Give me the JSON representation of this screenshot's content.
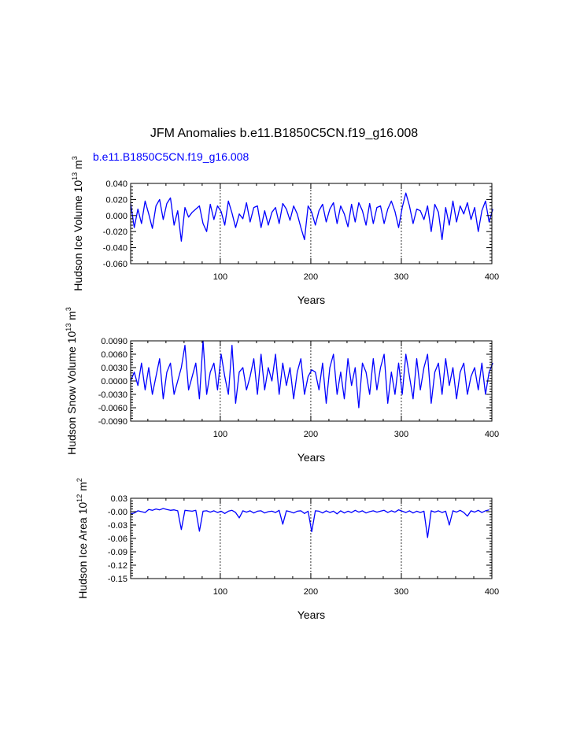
{
  "figure": {
    "title": "JFM Anomalies b.e11.B1850C5CN.f19_g16.008",
    "subtitle": "b.e11.B1850C5CN.f19_g16.008",
    "subtitle_color": "#0000ff",
    "line_color": "#0000ff",
    "ref_line_x": [
      100,
      200,
      300
    ]
  },
  "chart_data": [
    {
      "type": "line",
      "title": "",
      "xlabel": "Years",
      "ylabel_base": "Hudson Ice Volume 10",
      "ylabel_exp": "13",
      "ylabel_unit": " m",
      "ylabel_unit_exp": "3",
      "xlim": [
        1,
        400
      ],
      "ylim": [
        -0.06,
        0.04
      ],
      "xticks": [
        100,
        200,
        300,
        400
      ],
      "xtick_labels": [
        "100",
        "200",
        "300",
        "400"
      ],
      "yticks": [
        -0.06,
        -0.04,
        -0.02,
        0.0,
        0.02,
        0.04
      ],
      "ytick_labels": [
        "-0.060",
        "-0.040",
        "-0.020",
        "0.000",
        "0.020",
        "0.040"
      ],
      "series": [
        {
          "name": "Hudson Ice Volume",
          "x_start": 1,
          "x_step": 4,
          "values": [
            0.015,
            -0.015,
            0.008,
            -0.01,
            0.018,
            0.002,
            -0.016,
            0.012,
            0.02,
            -0.005,
            0.015,
            0.022,
            -0.012,
            0.006,
            -0.032,
            0.01,
            -0.002,
            0.004,
            0.008,
            0.012,
            -0.01,
            -0.02,
            0.014,
            -0.005,
            0.012,
            0.005,
            -0.012,
            0.018,
            0.003,
            -0.015,
            0.002,
            -0.004,
            0.016,
            -0.008,
            0.01,
            0.012,
            -0.015,
            0.006,
            -0.012,
            0.004,
            0.01,
            -0.01,
            0.015,
            0.008,
            -0.006,
            0.012,
            0.002,
            -0.015,
            -0.03,
            0.012,
            0.004,
            -0.012,
            0.006,
            0.014,
            -0.008,
            0.008,
            0.016,
            -0.01,
            0.012,
            0.002,
            -0.014,
            0.014,
            -0.008,
            0.016,
            0.006,
            -0.012,
            0.015,
            -0.01,
            0.01,
            0.012,
            -0.01,
            0.008,
            0.018,
            0.005,
            -0.015,
            0.01,
            0.028,
            0.012,
            -0.01,
            0.008,
            0.006,
            -0.005,
            0.012,
            -0.02,
            0.014,
            0.004,
            -0.03,
            0.01,
            -0.012,
            0.018,
            -0.008,
            0.012,
            0.002,
            0.016,
            -0.005,
            0.01,
            -0.02,
            0.006,
            0.018,
            -0.008,
            0.008
          ]
        }
      ]
    },
    {
      "type": "line",
      "title": "",
      "xlabel": "Years",
      "ylabel_base": "Hudson Snow Volume 10",
      "ylabel_exp": "13",
      "ylabel_unit": " m",
      "ylabel_unit_exp": "3",
      "xlim": [
        1,
        400
      ],
      "ylim": [
        -0.009,
        0.009
      ],
      "xticks": [
        100,
        200,
        300,
        400
      ],
      "xtick_labels": [
        "100",
        "200",
        "300",
        "400"
      ],
      "yticks": [
        -0.009,
        -0.006,
        -0.003,
        0.0,
        0.003,
        0.006,
        0.009
      ],
      "ytick_labels": [
        "-0.0090",
        "-0.0060",
        "-0.0030",
        "0.0000",
        "0.0030",
        "0.0060",
        "0.0090"
      ],
      "series": [
        {
          "name": "Hudson Snow Volume",
          "x_start": 1,
          "x_step": 4,
          "values": [
            0.0,
            0.002,
            -0.001,
            0.004,
            -0.002,
            0.003,
            -0.003,
            0.001,
            0.005,
            -0.004,
            0.002,
            0.004,
            -0.003,
            0.0,
            0.003,
            0.008,
            -0.002,
            0.001,
            0.004,
            -0.004,
            0.009,
            -0.003,
            0.002,
            0.004,
            -0.002,
            0.006,
            0.001,
            -0.003,
            0.008,
            -0.005,
            0.002,
            0.003,
            -0.002,
            0.001,
            0.005,
            -0.003,
            0.006,
            -0.002,
            0.003,
            0.0,
            0.006,
            -0.003,
            0.004,
            -0.001,
            0.003,
            -0.004,
            0.002,
            0.005,
            -0.003,
            0.001,
            0.0025,
            0.002,
            -0.002,
            0.004,
            -0.005,
            0.003,
            0.006,
            -0.003,
            0.002,
            -0.004,
            0.005,
            -0.001,
            0.003,
            -0.006,
            0.004,
            0.002,
            -0.003,
            0.005,
            -0.002,
            0.003,
            0.006,
            -0.005,
            0.002,
            -0.003,
            0.004,
            -0.003,
            0.006,
            0.001,
            -0.004,
            0.005,
            -0.002,
            0.003,
            0.006,
            -0.005,
            0.002,
            0.004,
            -0.003,
            0.005,
            -0.001,
            0.003,
            -0.004,
            0.002,
            0.004,
            -0.003,
            0.001,
            0.003,
            -0.002,
            0.004,
            -0.003,
            0.002,
            0.004
          ]
        }
      ]
    },
    {
      "type": "line",
      "title": "",
      "xlabel": "Years",
      "ylabel_base": "Hudson Ice Area 10",
      "ylabel_exp": "12",
      "ylabel_unit": " m",
      "ylabel_unit_exp": "2",
      "xlim": [
        1,
        400
      ],
      "ylim": [
        -0.15,
        0.03
      ],
      "xticks": [
        100,
        200,
        300,
        400
      ],
      "xtick_labels": [
        "100",
        "200",
        "300",
        "400"
      ],
      "yticks": [
        -0.15,
        -0.12,
        -0.09,
        -0.06,
        -0.03,
        0.0,
        0.03
      ],
      "ytick_labels": [
        "-0.15",
        "-0.12",
        "-0.09",
        "-0.06",
        "-0.03",
        "-0.00",
        "0.03"
      ],
      "series": [
        {
          "name": "Hudson Ice Area",
          "x_start": 1,
          "x_step": 4,
          "values": [
            -0.005,
            -0.003,
            0.002,
            0.0,
            -0.002,
            0.005,
            0.003,
            0.006,
            0.004,
            0.007,
            0.005,
            0.003,
            0.004,
            0.002,
            -0.04,
            0.003,
            0.002,
            0.001,
            0.003,
            -0.044,
            0.001,
            0.002,
            -0.001,
            0.002,
            -0.002,
            0.001,
            -0.004,
            0.001,
            0.003,
            -0.002,
            -0.014,
            0.002,
            -0.001,
            0.002,
            -0.003,
            0.001,
            0.002,
            -0.003,
            0.0,
            0.001,
            -0.002,
            0.003,
            -0.028,
            0.002,
            0.0,
            -0.003,
            0.001,
            0.002,
            -0.004,
            0.001,
            -0.045,
            0.002,
            0.001,
            -0.003,
            0.002,
            -0.002,
            0.001,
            -0.005,
            0.002,
            -0.003,
            0.001,
            -0.002,
            0.003,
            -0.001,
            0.002,
            -0.003,
            0.0,
            0.002,
            -0.001,
            0.001,
            0.003,
            -0.002,
            0.002,
            -0.001,
            0.004,
            0.001,
            -0.002,
            0.002,
            -0.003,
            0.001,
            -0.002,
            0.001,
            -0.058,
            0.002,
            -0.001,
            0.002,
            -0.002,
            0.001,
            -0.03,
            0.002,
            -0.001,
            0.003,
            -0.002,
            -0.01,
            0.002,
            -0.001,
            0.003,
            -0.002,
            0.002,
            0.004
          ]
        }
      ]
    }
  ]
}
